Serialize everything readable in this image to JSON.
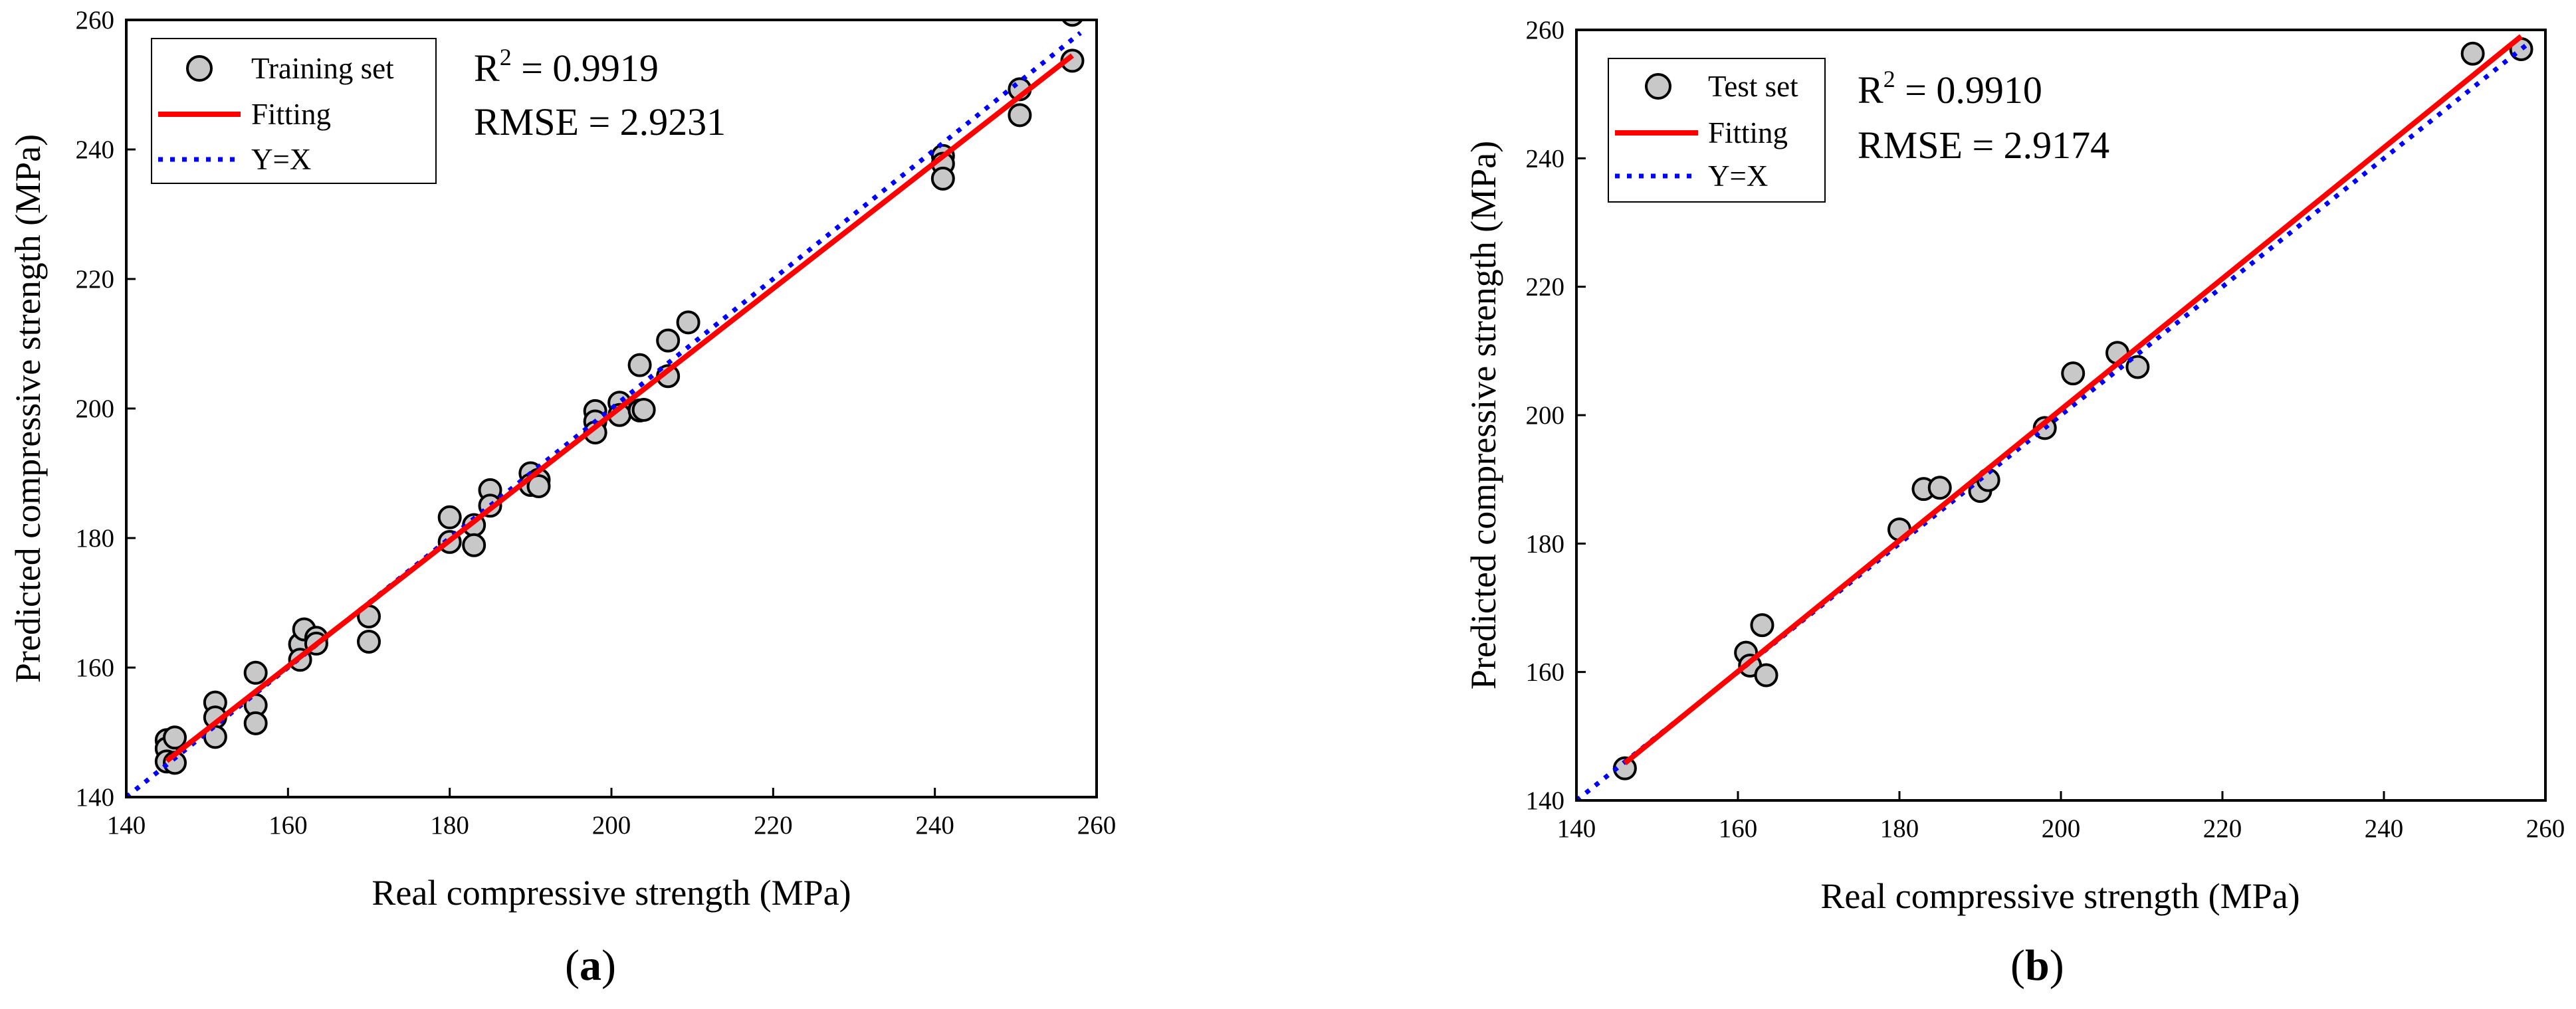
{
  "chart_data": [
    {
      "panel_label": "(a)",
      "panel_letter": "a",
      "type": "scatter",
      "xlabel": "Real compressive strength (MPa)",
      "ylabel": "Predicted compressive strength (MPa)",
      "xlim": [
        140,
        260
      ],
      "ylim": [
        140,
        260
      ],
      "xticks": [
        "140",
        "160",
        "180",
        "200",
        "220",
        "240",
        "260"
      ],
      "yticks": [
        "140",
        "160",
        "180",
        "200",
        "220",
        "240",
        "260"
      ],
      "grid": false,
      "legend_position": "top-left",
      "legend": {
        "points": "Training set",
        "fit": "Fitting",
        "identity": "Y=X"
      },
      "stats": {
        "r2_prefix": "R",
        "r2_sup": "2",
        "r2_value": " = 0.9919",
        "rmse": "RMSE = 2.9231"
      },
      "colors": {
        "points_fill": "#c8c8c8",
        "points_edge": "#000000",
        "fit": "#ff0000",
        "identity": "#0000ff"
      },
      "fit_line": {
        "x": [
          145,
          257
        ],
        "y": [
          145.6,
          254.5
        ]
      },
      "identity_line": {
        "x": [
          140,
          258
        ],
        "y": [
          140,
          258
        ]
      },
      "series": [
        {
          "name": "Training set",
          "points": [
            [
              145,
              148.8
            ],
            [
              145,
              147.5
            ],
            [
              145,
              145.5
            ],
            [
              146,
              149.2
            ],
            [
              146,
              145.3
            ],
            [
              151,
              154.6
            ],
            [
              151,
              152.3
            ],
            [
              151,
              149.3
            ],
            [
              156,
              159.2
            ],
            [
              156,
              154.2
            ],
            [
              156,
              151.4
            ],
            [
              161.5,
              163.6
            ],
            [
              161.5,
              161.2
            ],
            [
              162,
              165.9
            ],
            [
              163.5,
              164.6
            ],
            [
              163.5,
              163.7
            ],
            [
              170,
              167.9
            ],
            [
              170,
              164.0
            ],
            [
              180,
              183.2
            ],
            [
              180,
              179.4
            ],
            [
              183,
              182.0
            ],
            [
              183,
              178.9
            ],
            [
              185,
              187.4
            ],
            [
              185,
              185.0
            ],
            [
              190,
              190.0
            ],
            [
              190,
              188.2
            ],
            [
              191,
              189.0
            ],
            [
              191,
              188.0
            ],
            [
              198,
              199.6
            ],
            [
              198,
              198.0
            ],
            [
              198,
              196.3
            ],
            [
              201,
              200.9
            ],
            [
              201,
              199.0
            ],
            [
              203.5,
              206.7
            ],
            [
              203.5,
              199.7
            ],
            [
              204,
              199.8
            ],
            [
              207,
              210.5
            ],
            [
              207,
              205.0
            ],
            [
              209.5,
              213.3
            ],
            [
              241,
              239.0
            ],
            [
              241,
              237.8
            ],
            [
              241,
              235.5
            ],
            [
              250.5,
              249.3
            ],
            [
              250.5,
              245.3
            ],
            [
              257,
              260.8
            ],
            [
              257,
              253.7
            ]
          ]
        }
      ]
    },
    {
      "panel_label": "(b)",
      "panel_letter": "b",
      "type": "scatter",
      "xlabel": "Real compressive strength (MPa)",
      "ylabel": "Predicted compressive strength (MPa)",
      "xlim": [
        140,
        260
      ],
      "ylim": [
        140,
        260
      ],
      "xticks": [
        "140",
        "160",
        "180",
        "200",
        "220",
        "240",
        "260"
      ],
      "yticks": [
        "140",
        "160",
        "180",
        "200",
        "220",
        "240",
        "260"
      ],
      "grid": false,
      "legend_position": "top-left",
      "legend": {
        "points": "Test set",
        "fit": "Fitting",
        "identity": "Y=X"
      },
      "stats": {
        "r2_prefix": "R",
        "r2_sup": "2",
        "r2_value": " = 0.9910",
        "rmse": "RMSE = 2.9174"
      },
      "colors": {
        "points_fill": "#c8c8c8",
        "points_edge": "#000000",
        "fit": "#ff0000",
        "identity": "#0000ff"
      },
      "fit_line": {
        "x": [
          146,
          257
        ],
        "y": [
          145.8,
          259.0
        ]
      },
      "identity_line": {
        "x": [
          140,
          258
        ],
        "y": [
          140,
          258
        ]
      },
      "series": [
        {
          "name": "Test set",
          "points": [
            [
              146,
              145.0
            ],
            [
              161,
              163.0
            ],
            [
              161.5,
              161.0
            ],
            [
              163,
              167.3
            ],
            [
              163.5,
              159.5
            ],
            [
              180,
              182.2
            ],
            [
              183,
              188.5
            ],
            [
              185,
              188.7
            ],
            [
              190,
              188.2
            ],
            [
              191,
              189.9
            ],
            [
              198,
              198.0
            ],
            [
              201.5,
              206.5
            ],
            [
              207,
              209.7
            ],
            [
              209.5,
              207.5
            ],
            [
              251,
              256.3
            ],
            [
              257,
              257.0
            ]
          ]
        }
      ]
    }
  ]
}
